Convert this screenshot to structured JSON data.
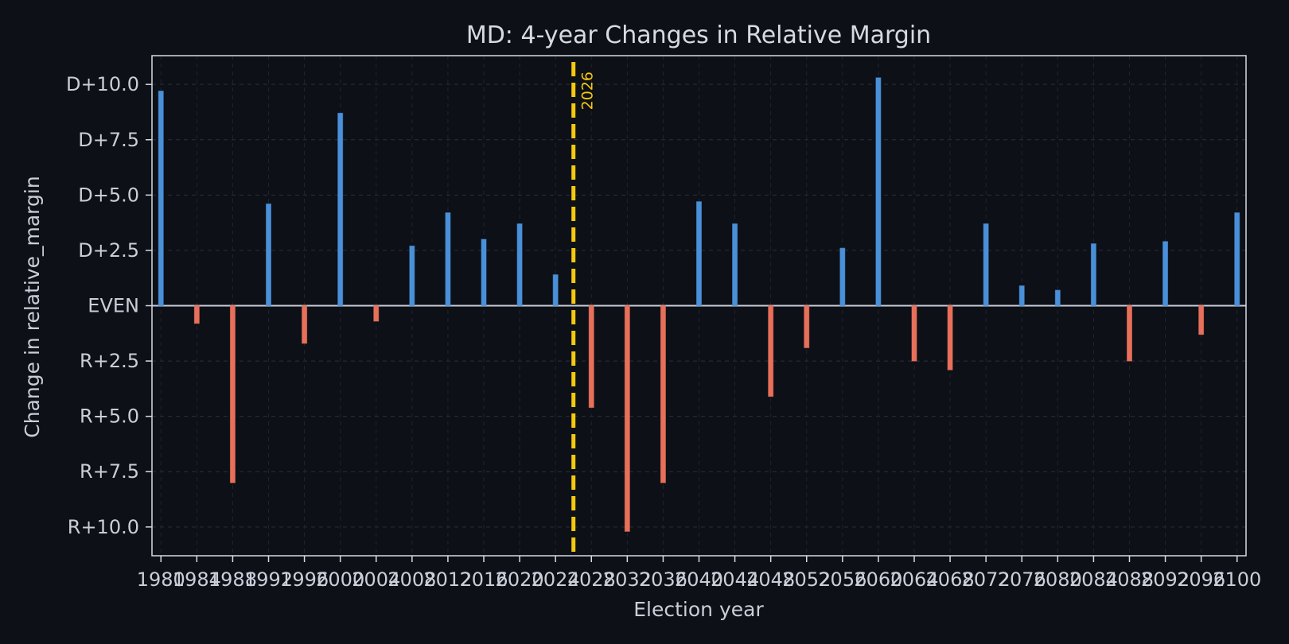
{
  "chart_data": {
    "type": "bar",
    "title": "MD: 4-year Changes in Relative Margin",
    "xlabel": "Election year",
    "ylabel": "Change in relative_margin",
    "x": [
      1980,
      1984,
      1988,
      1992,
      1996,
      2000,
      2004,
      2008,
      2012,
      2016,
      2020,
      2024,
      2028,
      2032,
      2036,
      2040,
      2044,
      2048,
      2052,
      2056,
      2060,
      2064,
      2068,
      2072,
      2076,
      2080,
      2084,
      2088,
      2092,
      2096,
      2100
    ],
    "values": [
      9.7,
      -0.8,
      -8.0,
      4.6,
      -1.7,
      8.7,
      -0.7,
      2.7,
      4.2,
      3.0,
      3.7,
      1.4,
      -4.6,
      -10.2,
      -8.0,
      4.7,
      3.7,
      -4.1,
      -1.9,
      2.6,
      10.3,
      -2.5,
      -2.9,
      3.7,
      0.9,
      0.7,
      2.8,
      -2.5,
      2.9,
      -1.3,
      4.2
    ],
    "xticks": [
      "1980",
      "1984",
      "1988",
      "1992",
      "1996",
      "2000",
      "2004",
      "2008",
      "2012",
      "2016",
      "2020",
      "2024",
      "2028",
      "2032",
      "2036",
      "2040",
      "2044",
      "2048",
      "2052",
      "2056",
      "2060",
      "2064",
      "2068",
      "2072",
      "2076",
      "2080",
      "2084",
      "2088",
      "2092",
      "2096",
      "2100"
    ],
    "yticks": [
      {
        "value": 10,
        "label": "D+10.0"
      },
      {
        "value": 7.5,
        "label": "D+7.5"
      },
      {
        "value": 5,
        "label": "D+5.0"
      },
      {
        "value": 2.5,
        "label": "D+2.5"
      },
      {
        "value": 0,
        "label": "EVEN"
      },
      {
        "value": -2.5,
        "label": "R+2.5"
      },
      {
        "value": -5,
        "label": "R+5.0"
      },
      {
        "value": -7.5,
        "label": "R+7.5"
      },
      {
        "value": -10,
        "label": "R+10.0"
      }
    ],
    "xlim": [
      1979,
      2101
    ],
    "ylim": [
      -11.3,
      11.3
    ],
    "grid": true,
    "annotation": {
      "x": 2026,
      "label": "2026"
    },
    "colors": {
      "positive": "#4a90d9",
      "negative": "#e8705a",
      "annotation": "#f6c90e",
      "background": "#0d1017",
      "frame": "#d6dae3",
      "zero_line": "#c9ced8"
    }
  }
}
